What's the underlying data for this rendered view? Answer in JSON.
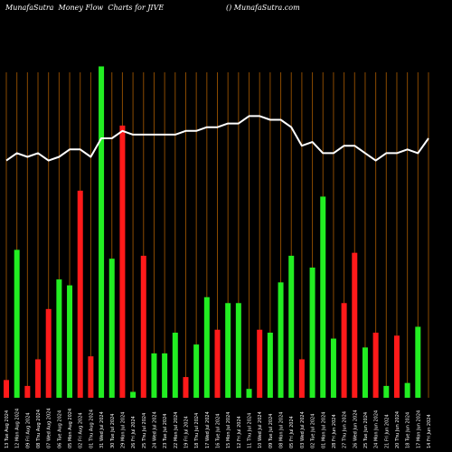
{
  "header": {
    "left_text": "MunafaSutra  Money Flow  Charts for JIVE",
    "right_text": "() MunafaSutra.com"
  },
  "colors": {
    "background": "#000000",
    "gridline": "#8a4a00",
    "up": "#22ee22",
    "down": "#ff1a1a",
    "line": "#ffffff",
    "text": "#ffffff"
  },
  "chart_data": {
    "type": "bar",
    "grid": true,
    "categories": [
      "Tue 13 Aug 2024",
      "Mon 12 Aug 2024",
      "Fri 09 Aug 2024",
      "Thu 08 Aug 2024",
      "Wed 07 Aug 2024",
      "Tue 06 Aug 2024",
      "Mon 05 Aug 2024",
      "Fri 02 Aug 2024",
      "Thu 01 Aug 2024",
      "Wed 31 Jul 2024",
      "Tue 30 Jul 2024",
      "Mon 29 Jul 2024",
      "Fri 26 Jul 2024",
      "Thu 25 Jul 2024",
      "Wed 24 Jul 2024",
      "Tue 23 Jul 2024",
      "Mon 22 Jul 2024",
      "Fri 19 Jul 2024",
      "Thu 18 Jul 2024",
      "Wed 17 Jul 2024",
      "Tue 16 Jul 2024",
      "Mon 15 Jul 2024",
      "Fri 12 Jul 2024",
      "Thu 11 Jul 2024",
      "Wed 10 Jul 2024",
      "Tue 09 Jul 2024",
      "Mon 08 Jul 2024",
      "Fri 05 Jul 2024",
      "Wed 03 Jul 2024",
      "Tue 02 Jul 2024",
      "Mon 01 Jul 2024",
      "Fri 28 Jun 2024",
      "Thu 27 Jun 2024",
      "Wed 26 Jun 2024",
      "Tue 25 Jun 2024",
      "Mon 24 Jun 2024",
      "Fri 21 Jun 2024",
      "Thu 20 Jun 2024",
      "Tue 18 Jun 2024",
      "Mon 17 Jun 2024",
      "Fri 14 Jun 2024"
    ],
    "tick_labels": [
      "13 Tue Aug 2024",
      "12 Mon Aug 2024",
      "09 Fri Aug 2024",
      "08 Thu Aug 2024",
      "07 Wed Aug 2024",
      "06 Tue Aug 2024",
      "05 Mon Aug 2024",
      "02 Fri Aug 2024",
      "01 Thu Aug 2024",
      "31 Wed Jul 2024",
      "30 Tue Jul 2024",
      "29 Mon Jul 2024",
      "26 Fri Jul 2024",
      "25 Thu Jul 2024",
      "24 Wed Jul 2024",
      "23 Tue Jul 2024",
      "22 Mon Jul 2024",
      "19 Fri Jul 2024",
      "18 Thu Jul 2024",
      "17 Wed Jul 2024",
      "16 Tue Jul 2024",
      "15 Mon Jul 2024",
      "12 Fri Jul 2024",
      "11 Thu Jul 2024",
      "10 Wed Jul 2024",
      "09 Tue Jul 2024",
      "08 Mon Jul 2024",
      "05 Fri Jul 2024",
      "03 Wed Jul 2024",
      "02 Tue Jul 2024",
      "01 Mon Jul 2024",
      "28 Fri Jun 2024",
      "27 Thu Jun 2024",
      "26 Wed Jun 2024",
      "25 Tue Jun 2024",
      "24 Mon Jun 2024",
      "21 Fri Jun 2024",
      "20 Thu Jun 2024",
      "18 Tue Jun 2024",
      "17 Mon Jun 2024",
      "14 Fri Jun 2024"
    ],
    "series": [
      {
        "type": "bar",
        "values": [
          6,
          50,
          4,
          13,
          30,
          40,
          38,
          70,
          14,
          112,
          47,
          92,
          2,
          48,
          15,
          15,
          22,
          7,
          18,
          34,
          23,
          32,
          32,
          3,
          23,
          22,
          39,
          48,
          13,
          44,
          68,
          20,
          32,
          49,
          17,
          22,
          4,
          21,
          5,
          24,
          0
        ],
        "colors": [
          "down",
          "up",
          "down",
          "down",
          "down",
          "up",
          "up",
          "down",
          "down",
          "up",
          "up",
          "down",
          "up",
          "down",
          "up",
          "up",
          "up",
          "down",
          "up",
          "up",
          "down",
          "up",
          "up",
          "up",
          "down",
          "up",
          "up",
          "up",
          "down",
          "up",
          "up",
          "up",
          "down",
          "down",
          "up",
          "down",
          "up",
          "down",
          "up",
          "up",
          "up"
        ]
      },
      {
        "type": "line",
        "values": [
          64,
          66,
          65,
          66,
          64,
          65,
          67,
          67,
          65,
          70,
          70,
          72,
          71,
          71,
          71,
          71,
          71,
          72,
          72,
          73,
          73,
          74,
          74,
          76,
          76,
          75,
          75,
          73,
          68,
          69,
          66,
          66,
          68,
          68,
          66,
          64,
          66,
          66,
          67,
          66,
          70
        ]
      }
    ],
    "ylim": [
      0,
      110
    ],
    "line_ylim": [
      0,
      100
    ]
  }
}
